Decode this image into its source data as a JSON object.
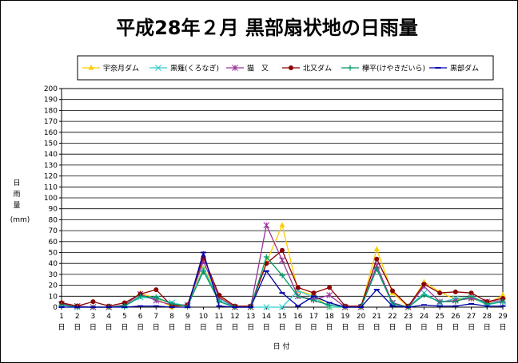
{
  "chart_data": {
    "type": "line",
    "title": "平成28年２月 黒部扇状地の日雨量",
    "xlabel": "日 付",
    "ylabel_chars": [
      "日",
      "雨",
      "量"
    ],
    "yunit": "(mm)",
    "ylim": [
      0,
      200
    ],
    "ystep": 10,
    "grid": true,
    "legend_position": "top",
    "categories": [
      "1",
      "2",
      "3",
      "4",
      "5",
      "6",
      "7",
      "8",
      "9",
      "10",
      "11",
      "12",
      "13",
      "14",
      "15",
      "16",
      "17",
      "18",
      "19",
      "20",
      "21",
      "22",
      "23",
      "24",
      "25",
      "26",
      "27",
      "28",
      "29"
    ],
    "category_suffix": "日",
    "series": [
      {
        "name": "宇奈月ダム",
        "color": "#ffcc00",
        "marker": "triangle",
        "values": [
          3,
          1,
          0,
          0,
          2,
          13,
          8,
          0,
          2,
          36,
          10,
          0,
          0,
          41,
          75,
          15,
          11,
          0,
          0,
          0,
          53,
          13,
          0,
          23,
          14,
          7,
          8,
          3,
          11
        ]
      },
      {
        "name": "黒薙(くろなぎ)",
        "color": "#33cccc",
        "marker": "x",
        "values": [
          2,
          0,
          0,
          0,
          1,
          9,
          8,
          4,
          1,
          35,
          7,
          0,
          0,
          0,
          0,
          15,
          9,
          0,
          0,
          0,
          35,
          3,
          0,
          13,
          4,
          8,
          9,
          2,
          5
        ]
      },
      {
        "name": "猫　又",
        "color": "#993399",
        "marker": "star",
        "values": [
          3,
          1,
          0,
          0,
          2,
          12,
          6,
          2,
          2,
          42,
          9,
          0,
          0,
          75,
          43,
          10,
          7,
          11,
          0,
          0,
          38,
          4,
          0,
          19,
          5,
          6,
          8,
          5,
          6
        ]
      },
      {
        "name": "北又ダム",
        "color": "#8b0000",
        "marker": "circle",
        "values": [
          4,
          1,
          5,
          1,
          4,
          12,
          16,
          1,
          2,
          46,
          11,
          1,
          1,
          40,
          52,
          18,
          13,
          18,
          1,
          1,
          44,
          15,
          1,
          21,
          13,
          14,
          13,
          5,
          8
        ]
      },
      {
        "name": "欅平(けやきだいら)",
        "color": "#009966",
        "marker": "plus",
        "values": [
          2,
          0,
          0,
          0,
          1,
          10,
          9,
          3,
          1,
          33,
          5,
          0,
          0,
          46,
          29,
          10,
          6,
          2,
          0,
          0,
          35,
          3,
          0,
          11,
          5,
          5,
          10,
          3,
          5
        ]
      },
      {
        "name": "黒部ダム",
        "color": "#0000aa",
        "marker": "dash",
        "values": [
          0,
          0,
          0,
          0,
          0,
          1,
          1,
          0,
          0,
          50,
          1,
          0,
          0,
          33,
          13,
          1,
          10,
          4,
          0,
          0,
          16,
          1,
          0,
          2,
          1,
          1,
          3,
          1,
          1
        ]
      }
    ]
  }
}
